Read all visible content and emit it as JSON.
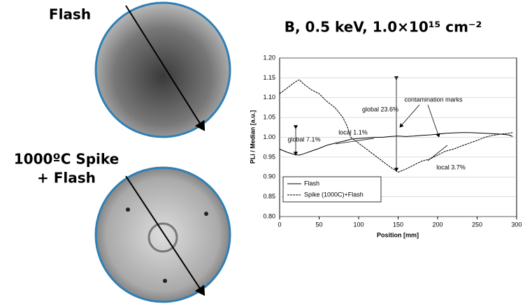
{
  "images": {
    "flash_label": "Flash",
    "spike_label_1": "1000ºC Spike",
    "spike_label_2": "+ Flash"
  },
  "chart_data": {
    "type": "line",
    "title": "B, 0.5 keV, 1.0×10¹⁵ cm⁻²",
    "x_label": "Position [mm]",
    "y_label": "PLi / Median [a.u.]",
    "x": [
      0,
      10,
      20,
      25,
      30,
      40,
      50,
      60,
      70,
      80,
      85,
      90,
      100,
      110,
      120,
      130,
      140,
      150,
      160,
      170,
      180,
      190,
      200,
      210,
      220,
      230,
      240,
      250,
      260,
      270,
      280,
      290,
      295
    ],
    "series": [
      {
        "name": "Flash",
        "color": "#000000",
        "values": [
          0.97,
          0.962,
          0.956,
          0.955,
          0.958,
          0.965,
          0.972,
          0.98,
          0.985,
          0.99,
          0.992,
          0.995,
          0.997,
          0.998,
          1.0,
          1.0,
          1.002,
          1.003,
          1.002,
          1.003,
          1.005,
          1.006,
          1.008,
          1.01,
          1.011,
          1.012,
          1.012,
          1.011,
          1.01,
          1.009,
          1.008,
          1.006,
          1.002
        ]
      },
      {
        "name": "Spike (1000C)+Flash",
        "color": "#000000",
        "values": [
          1.11,
          1.125,
          1.14,
          1.145,
          1.135,
          1.12,
          1.11,
          1.09,
          1.075,
          1.05,
          1.03,
          1.0,
          0.985,
          0.97,
          0.955,
          0.94,
          0.925,
          0.912,
          0.92,
          0.93,
          0.94,
          0.945,
          0.955,
          0.965,
          0.97,
          0.978,
          0.985,
          0.992,
          1.0,
          1.005,
          1.008,
          1.01,
          1.012
        ]
      }
    ],
    "xlim": [
      0,
      300
    ],
    "xticks": [
      0,
      50,
      100,
      150,
      200,
      250,
      300
    ],
    "ylim": [
      0.8,
      1.2
    ],
    "yticks": [
      {
        "value": 0.8,
        "label": "0.80"
      },
      0.85,
      {
        "value": 0.9,
        "label": "0.90"
      },
      0.95,
      {
        "value": 1,
        "label": "1.00"
      },
      1.05,
      {
        "value": 1.1,
        "label": "1.10"
      },
      1.15,
      {
        "value": 1.2,
        "label": "1.20"
      }
    ],
    "grid": true,
    "legend": "lower left",
    "annotations": [
      "contamination marks",
      "global 23.6%",
      "local 1.1%",
      "global 7.1%",
      "local 3.7%"
    ]
  }
}
